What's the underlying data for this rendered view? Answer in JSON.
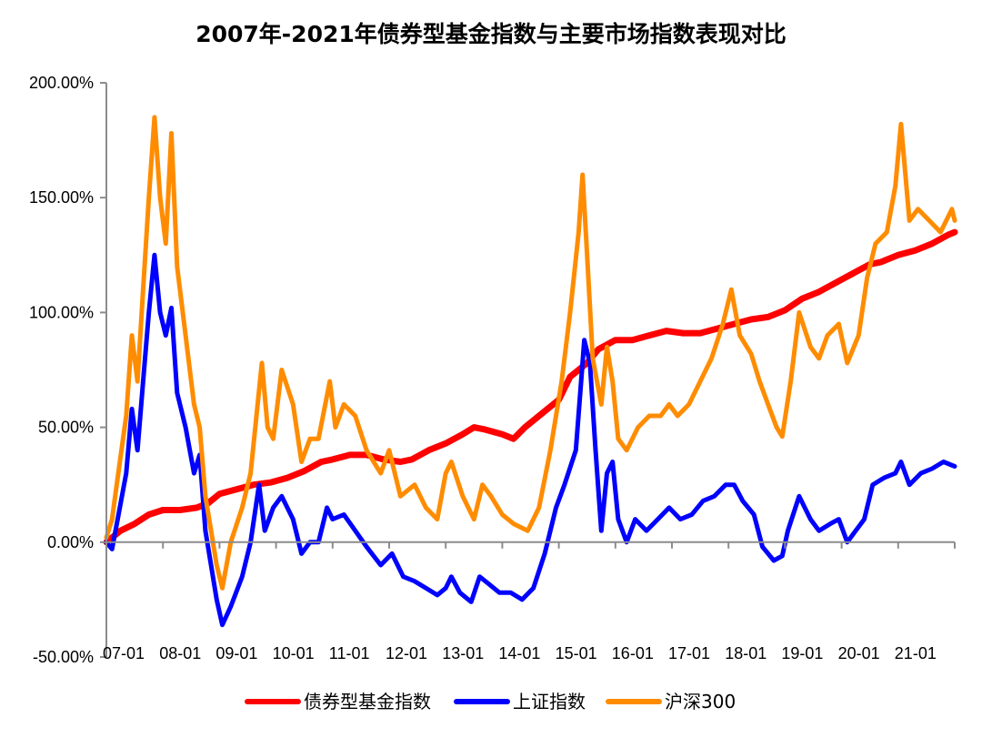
{
  "chart_data": {
    "type": "line",
    "title": "2007年-2021年债券型基金指数与主要市场指数表现对比",
    "xlabel": "",
    "ylabel": "",
    "x_tick_labels": [
      "07-01",
      "08-01",
      "09-01",
      "10-01",
      "11-01",
      "12-01",
      "13-01",
      "14-01",
      "15-01",
      "16-01",
      "17-01",
      "18-01",
      "19-01",
      "20-01",
      "21-01"
    ],
    "y_tick_labels": [
      "-50.00%",
      "0.00%",
      "50.00%",
      "100.00%",
      "150.00%",
      "200.00%"
    ],
    "y_ticks": [
      -50,
      0,
      50,
      100,
      150,
      200
    ],
    "ylim": [
      -50,
      200
    ],
    "xlim": [
      2007.0,
      2022.0
    ],
    "grid": false,
    "legend_position": "bottom",
    "series": [
      {
        "name": "债券型基金指数",
        "color": "#ff0000",
        "points": [
          [
            2007.0,
            0
          ],
          [
            2007.25,
            5
          ],
          [
            2007.5,
            8
          ],
          [
            2007.75,
            12
          ],
          [
            2008.0,
            14
          ],
          [
            2008.3,
            14
          ],
          [
            2008.6,
            15
          ],
          [
            2008.8,
            17
          ],
          [
            2009.0,
            21
          ],
          [
            2009.3,
            23
          ],
          [
            2009.6,
            25
          ],
          [
            2009.9,
            26
          ],
          [
            2010.2,
            28
          ],
          [
            2010.5,
            31
          ],
          [
            2010.8,
            35
          ],
          [
            2011.0,
            36
          ],
          [
            2011.3,
            38
          ],
          [
            2011.6,
            38
          ],
          [
            2011.9,
            36
          ],
          [
            2012.2,
            35
          ],
          [
            2012.4,
            36
          ],
          [
            2012.7,
            40
          ],
          [
            2013.0,
            43
          ],
          [
            2013.3,
            47
          ],
          [
            2013.5,
            50
          ],
          [
            2013.7,
            49
          ],
          [
            2014.0,
            47
          ],
          [
            2014.2,
            45
          ],
          [
            2014.4,
            50
          ],
          [
            2014.7,
            56
          ],
          [
            2015.0,
            62
          ],
          [
            2015.2,
            72
          ],
          [
            2015.5,
            78
          ],
          [
            2015.7,
            84
          ],
          [
            2016.0,
            88
          ],
          [
            2016.3,
            88
          ],
          [
            2016.6,
            90
          ],
          [
            2016.9,
            92
          ],
          [
            2017.2,
            91
          ],
          [
            2017.5,
            91
          ],
          [
            2017.8,
            93
          ],
          [
            2018.1,
            95
          ],
          [
            2018.4,
            97
          ],
          [
            2018.7,
            98
          ],
          [
            2019.0,
            101
          ],
          [
            2019.3,
            106
          ],
          [
            2019.6,
            109
          ],
          [
            2019.9,
            113
          ],
          [
            2020.2,
            117
          ],
          [
            2020.5,
            121
          ],
          [
            2020.7,
            122
          ],
          [
            2021.0,
            125
          ],
          [
            2021.3,
            127
          ],
          [
            2021.6,
            130
          ],
          [
            2021.9,
            134
          ],
          [
            2022.0,
            135
          ]
        ]
      },
      {
        "name": "上证指数",
        "color": "#0000ff",
        "points": [
          [
            2007.0,
            0
          ],
          [
            2007.1,
            -3
          ],
          [
            2007.2,
            10
          ],
          [
            2007.35,
            30
          ],
          [
            2007.45,
            58
          ],
          [
            2007.55,
            40
          ],
          [
            2007.65,
            70
          ],
          [
            2007.75,
            100
          ],
          [
            2007.85,
            125
          ],
          [
            2007.95,
            100
          ],
          [
            2008.05,
            90
          ],
          [
            2008.15,
            102
          ],
          [
            2008.25,
            65
          ],
          [
            2008.4,
            50
          ],
          [
            2008.55,
            30
          ],
          [
            2008.65,
            38
          ],
          [
            2008.75,
            5
          ],
          [
            2008.85,
            -10
          ],
          [
            2008.95,
            -25
          ],
          [
            2009.05,
            -36
          ],
          [
            2009.2,
            -28
          ],
          [
            2009.4,
            -15
          ],
          [
            2009.55,
            0
          ],
          [
            2009.7,
            25
          ],
          [
            2009.8,
            5
          ],
          [
            2009.95,
            15
          ],
          [
            2010.1,
            20
          ],
          [
            2010.3,
            10
          ],
          [
            2010.45,
            -5
          ],
          [
            2010.6,
            0
          ],
          [
            2010.75,
            0
          ],
          [
            2010.9,
            15
          ],
          [
            2011.0,
            10
          ],
          [
            2011.2,
            12
          ],
          [
            2011.4,
            5
          ],
          [
            2011.6,
            -2
          ],
          [
            2011.85,
            -10
          ],
          [
            2012.05,
            -5
          ],
          [
            2012.25,
            -15
          ],
          [
            2012.45,
            -17
          ],
          [
            2012.65,
            -20
          ],
          [
            2012.85,
            -23
          ],
          [
            2013.0,
            -20
          ],
          [
            2013.1,
            -15
          ],
          [
            2013.25,
            -22
          ],
          [
            2013.45,
            -26
          ],
          [
            2013.6,
            -15
          ],
          [
            2013.75,
            -18
          ],
          [
            2013.95,
            -22
          ],
          [
            2014.15,
            -22
          ],
          [
            2014.35,
            -25
          ],
          [
            2014.55,
            -20
          ],
          [
            2014.75,
            -5
          ],
          [
            2014.95,
            15
          ],
          [
            2015.1,
            25
          ],
          [
            2015.3,
            40
          ],
          [
            2015.45,
            88
          ],
          [
            2015.55,
            78
          ],
          [
            2015.65,
            40
          ],
          [
            2015.75,
            5
          ],
          [
            2015.85,
            30
          ],
          [
            2015.95,
            35
          ],
          [
            2016.05,
            10
          ],
          [
            2016.2,
            0
          ],
          [
            2016.35,
            10
          ],
          [
            2016.55,
            5
          ],
          [
            2016.75,
            10
          ],
          [
            2016.95,
            15
          ],
          [
            2017.15,
            10
          ],
          [
            2017.35,
            12
          ],
          [
            2017.55,
            18
          ],
          [
            2017.75,
            20
          ],
          [
            2017.95,
            25
          ],
          [
            2018.1,
            25
          ],
          [
            2018.25,
            18
          ],
          [
            2018.45,
            12
          ],
          [
            2018.6,
            -2
          ],
          [
            2018.8,
            -8
          ],
          [
            2018.95,
            -6
          ],
          [
            2019.05,
            5
          ],
          [
            2019.25,
            20
          ],
          [
            2019.45,
            10
          ],
          [
            2019.6,
            5
          ],
          [
            2019.8,
            8
          ],
          [
            2019.95,
            10
          ],
          [
            2020.1,
            0
          ],
          [
            2020.25,
            5
          ],
          [
            2020.4,
            10
          ],
          [
            2020.55,
            25
          ],
          [
            2020.75,
            28
          ],
          [
            2020.95,
            30
          ],
          [
            2021.05,
            35
          ],
          [
            2021.2,
            25
          ],
          [
            2021.4,
            30
          ],
          [
            2021.6,
            32
          ],
          [
            2021.8,
            35
          ],
          [
            2022.0,
            33
          ]
        ]
      },
      {
        "name": "沪深300",
        "color": "#ff8c00",
        "points": [
          [
            2007.0,
            2
          ],
          [
            2007.1,
            10
          ],
          [
            2007.2,
            28
          ],
          [
            2007.35,
            55
          ],
          [
            2007.45,
            90
          ],
          [
            2007.55,
            70
          ],
          [
            2007.65,
            110
          ],
          [
            2007.75,
            150
          ],
          [
            2007.85,
            185
          ],
          [
            2007.95,
            150
          ],
          [
            2008.05,
            130
          ],
          [
            2008.15,
            178
          ],
          [
            2008.25,
            120
          ],
          [
            2008.4,
            90
          ],
          [
            2008.55,
            60
          ],
          [
            2008.65,
            50
          ],
          [
            2008.75,
            20
          ],
          [
            2008.85,
            5
          ],
          [
            2008.95,
            -10
          ],
          [
            2009.05,
            -20
          ],
          [
            2009.2,
            0
          ],
          [
            2009.4,
            15
          ],
          [
            2009.55,
            30
          ],
          [
            2009.75,
            78
          ],
          [
            2009.85,
            50
          ],
          [
            2009.95,
            45
          ],
          [
            2010.1,
            75
          ],
          [
            2010.3,
            60
          ],
          [
            2010.45,
            35
          ],
          [
            2010.6,
            45
          ],
          [
            2010.75,
            45
          ],
          [
            2010.95,
            70
          ],
          [
            2011.05,
            50
          ],
          [
            2011.2,
            60
          ],
          [
            2011.4,
            55
          ],
          [
            2011.6,
            40
          ],
          [
            2011.85,
            30
          ],
          [
            2012.0,
            40
          ],
          [
            2012.2,
            20
          ],
          [
            2012.45,
            25
          ],
          [
            2012.65,
            15
          ],
          [
            2012.85,
            10
          ],
          [
            2013.0,
            30
          ],
          [
            2013.1,
            35
          ],
          [
            2013.3,
            20
          ],
          [
            2013.5,
            10
          ],
          [
            2013.65,
            25
          ],
          [
            2013.8,
            20
          ],
          [
            2014.0,
            12
          ],
          [
            2014.2,
            8
          ],
          [
            2014.45,
            5
          ],
          [
            2014.65,
            15
          ],
          [
            2014.85,
            40
          ],
          [
            2015.05,
            70
          ],
          [
            2015.2,
            100
          ],
          [
            2015.35,
            135
          ],
          [
            2015.42,
            160
          ],
          [
            2015.5,
            125
          ],
          [
            2015.6,
            80
          ],
          [
            2015.75,
            60
          ],
          [
            2015.85,
            85
          ],
          [
            2015.95,
            70
          ],
          [
            2016.05,
            45
          ],
          [
            2016.2,
            40
          ],
          [
            2016.4,
            50
          ],
          [
            2016.6,
            55
          ],
          [
            2016.8,
            55
          ],
          [
            2016.95,
            60
          ],
          [
            2017.1,
            55
          ],
          [
            2017.3,
            60
          ],
          [
            2017.5,
            70
          ],
          [
            2017.7,
            80
          ],
          [
            2017.9,
            95
          ],
          [
            2018.05,
            110
          ],
          [
            2018.2,
            90
          ],
          [
            2018.4,
            82
          ],
          [
            2018.55,
            70
          ],
          [
            2018.7,
            60
          ],
          [
            2018.85,
            50
          ],
          [
            2018.95,
            46
          ],
          [
            2019.1,
            70
          ],
          [
            2019.25,
            100
          ],
          [
            2019.45,
            85
          ],
          [
            2019.6,
            80
          ],
          [
            2019.75,
            90
          ],
          [
            2019.95,
            95
          ],
          [
            2020.1,
            78
          ],
          [
            2020.3,
            90
          ],
          [
            2020.45,
            115
          ],
          [
            2020.6,
            130
          ],
          [
            2020.8,
            135
          ],
          [
            2020.95,
            155
          ],
          [
            2021.05,
            182
          ],
          [
            2021.2,
            140
          ],
          [
            2021.35,
            145
          ],
          [
            2021.55,
            140
          ],
          [
            2021.75,
            135
          ],
          [
            2021.95,
            145
          ],
          [
            2022.0,
            140
          ]
        ]
      }
    ]
  }
}
